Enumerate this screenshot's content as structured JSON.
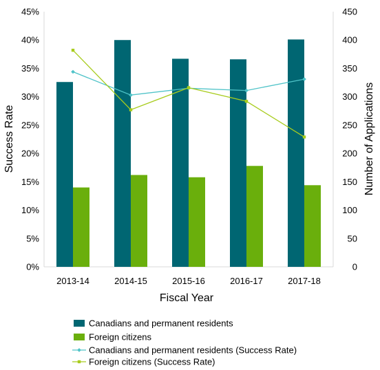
{
  "chart_data": {
    "type": "bar",
    "xlabel": "Fiscal Year",
    "ylabel": "Success Rate",
    "y2label": "Number of Applications",
    "categories": [
      "2013-14",
      "2014-15",
      "2015-16",
      "2016-17",
      "2017-18"
    ],
    "ylim": [
      0,
      45
    ],
    "y2lim": [
      0,
      450
    ],
    "yticks": [
      "0%",
      "5%",
      "10%",
      "15%",
      "20%",
      "25%",
      "30%",
      "35%",
      "40%",
      "45%"
    ],
    "y2ticks": [
      "0",
      "50",
      "100",
      "150",
      "200",
      "250",
      "300",
      "350",
      "400",
      "450"
    ],
    "grid": false,
    "legend_position": "bottom",
    "series": [
      {
        "name": "Canadians and permanent residents",
        "kind": "bar",
        "axis": "right",
        "color": "#006672",
        "values": [
          326,
          400,
          367,
          366,
          401
        ]
      },
      {
        "name": "Foreign citizens",
        "kind": "bar",
        "axis": "right",
        "color": "#6aaf0c",
        "values": [
          140,
          162,
          158,
          178,
          144
        ]
      },
      {
        "name": "Canadians and permanent residents (Success Rate)",
        "kind": "line",
        "axis": "left",
        "color": "#4fc3c8",
        "values": [
          34.4,
          30.3,
          31.5,
          31.1,
          33.1
        ]
      },
      {
        "name": "Foreign citizens (Success Rate)",
        "kind": "line",
        "axis": "left",
        "color": "#a8cc1d",
        "values": [
          38.2,
          27.7,
          31.6,
          29.2,
          22.9
        ]
      }
    ]
  }
}
